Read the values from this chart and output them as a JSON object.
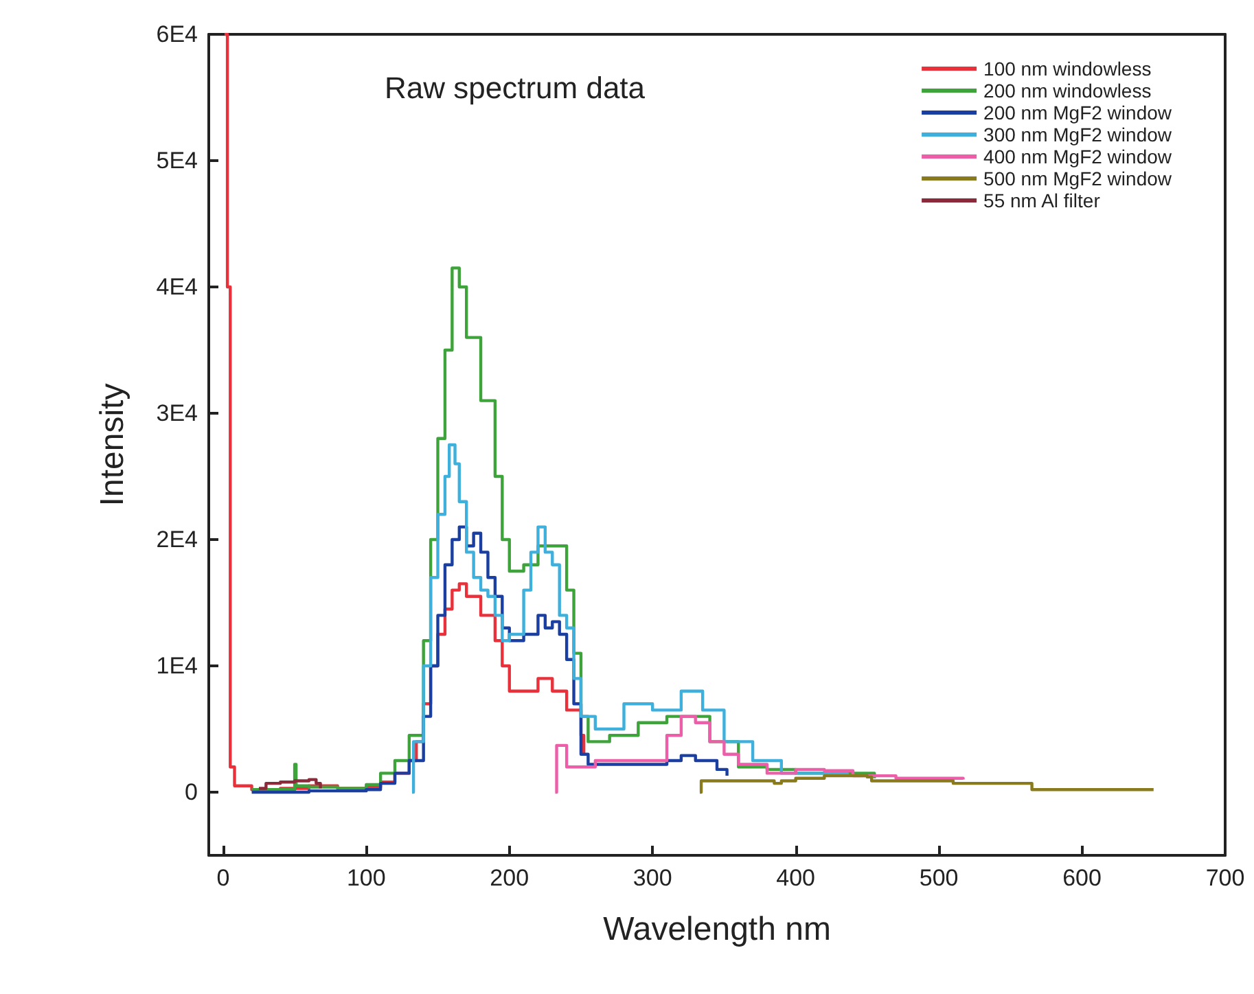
{
  "chart_data": {
    "type": "step",
    "title": "Raw spectrum data",
    "xlabel": "Wavelength nm",
    "ylabel": "Intensity",
    "xlim": [
      -10,
      700
    ],
    "xticks": [
      0,
      100,
      200,
      300,
      400,
      500,
      600,
      700
    ],
    "ylim": [
      -5000,
      60000
    ],
    "yticks": [
      {
        "value": 0,
        "label": "0"
      },
      {
        "value": 10000,
        "label": "1E4"
      },
      {
        "value": 20000,
        "label": "2E4"
      },
      {
        "value": 30000,
        "label": "3E4"
      },
      {
        "value": 40000,
        "label": "4E4"
      },
      {
        "value": 50000,
        "label": "5E4"
      },
      {
        "value": 60000,
        "label": "6E4"
      }
    ],
    "grid": false,
    "legend": "top right",
    "marker": "none",
    "line_style": "solid",
    "series": [
      {
        "name": "100 nm windowless",
        "color": "#e8313a",
        "x": [
          1,
          3,
          5,
          8,
          20,
          40,
          60,
          80,
          100,
          110,
          120,
          130,
          135,
          140,
          145,
          150,
          155,
          160,
          165,
          170,
          180,
          190,
          195,
          200,
          210,
          220,
          230,
          240,
          250,
          252
        ],
        "values": [
          60000,
          40000,
          2000,
          500,
          200,
          300,
          500,
          300,
          400,
          800,
          1500,
          2500,
          4000,
          7000,
          10000,
          12500,
          14500,
          16000,
          16500,
          15500,
          14000,
          12000,
          10000,
          8000,
          8000,
          9000,
          8000,
          6500,
          4500,
          3000
        ]
      },
      {
        "name": "200 nm windowless",
        "color": "#3da33a",
        "x": [
          20,
          50,
          51,
          60,
          80,
          100,
          110,
          120,
          130,
          140,
          145,
          150,
          155,
          160,
          165,
          170,
          180,
          190,
          195,
          200,
          210,
          220,
          230,
          240,
          245,
          250,
          255,
          270,
          290,
          310,
          320,
          340,
          360,
          380,
          400,
          430,
          455
        ],
        "values": [
          200,
          2200,
          500,
          400,
          300,
          600,
          1500,
          2500,
          4500,
          12000,
          20000,
          28000,
          35000,
          41500,
          40000,
          36000,
          31000,
          25000,
          20000,
          17500,
          18000,
          19500,
          19500,
          16000,
          11000,
          6000,
          4000,
          4500,
          5500,
          6000,
          6000,
          4000,
          2000,
          1800,
          1500,
          1500,
          1100
        ]
      },
      {
        "name": "200 nm MgF2 window",
        "color": "#1a3fa0",
        "x": [
          20,
          60,
          100,
          110,
          120,
          130,
          140,
          145,
          150,
          155,
          160,
          165,
          170,
          175,
          180,
          185,
          190,
          195,
          200,
          210,
          220,
          225,
          230,
          235,
          240,
          245,
          250,
          255,
          300,
          310,
          320,
          330,
          345,
          352
        ],
        "values": [
          0,
          100,
          200,
          700,
          1500,
          2500,
          6000,
          10000,
          14000,
          18000,
          20000,
          21000,
          19500,
          20500,
          19000,
          17000,
          15500,
          13000,
          12000,
          12500,
          14000,
          13000,
          13500,
          12500,
          10500,
          7000,
          3000,
          2200,
          2200,
          2500,
          2900,
          2500,
          1800,
          1300
        ]
      },
      {
        "name": "300 nm MgF2 window",
        "color": "#3fb0dc",
        "x": [
          132,
          133,
          140,
          145,
          150,
          155,
          158,
          162,
          165,
          170,
          175,
          180,
          185,
          190,
          195,
          200,
          210,
          215,
          220,
          225,
          230,
          235,
          240,
          245,
          250,
          260,
          280,
          300,
          320,
          335,
          350,
          370,
          390,
          420,
          436
        ],
        "values": [
          0,
          4000,
          10000,
          17000,
          22000,
          25000,
          27500,
          26000,
          23000,
          19000,
          17000,
          16000,
          15500,
          14000,
          12000,
          12500,
          16000,
          19000,
          21000,
          19000,
          18000,
          14000,
          13000,
          9000,
          6000,
          5000,
          7000,
          6500,
          8000,
          6500,
          4000,
          2500,
          1500,
          1500,
          1300
        ]
      },
      {
        "name": "400 nm MgF2 window",
        "color": "#ec5fa8",
        "x": [
          232,
          233,
          240,
          250,
          260,
          300,
          310,
          320,
          330,
          340,
          350,
          360,
          380,
          400,
          420,
          440,
          470,
          517
        ],
        "values": [
          0,
          3700,
          2000,
          2000,
          2500,
          2500,
          4500,
          6000,
          5500,
          4000,
          3000,
          2200,
          1500,
          1800,
          1700,
          1300,
          1100,
          1000
        ]
      },
      {
        "name": "500 nm MgF2 window",
        "color": "#8a7a1e",
        "x": [
          333,
          334,
          380,
          385,
          390,
          400,
          420,
          450,
          453,
          500,
          510,
          560,
          565,
          650
        ],
        "values": [
          0,
          900,
          900,
          700,
          900,
          1100,
          1300,
          1200,
          900,
          900,
          700,
          700,
          200,
          200
        ]
      },
      {
        "name": "55 nm Al filter",
        "color": "#8b2a3a",
        "x": [
          25,
          30,
          40,
          50,
          60,
          65,
          68
        ],
        "values": [
          300,
          700,
          800,
          900,
          1000,
          700,
          300
        ]
      }
    ]
  }
}
